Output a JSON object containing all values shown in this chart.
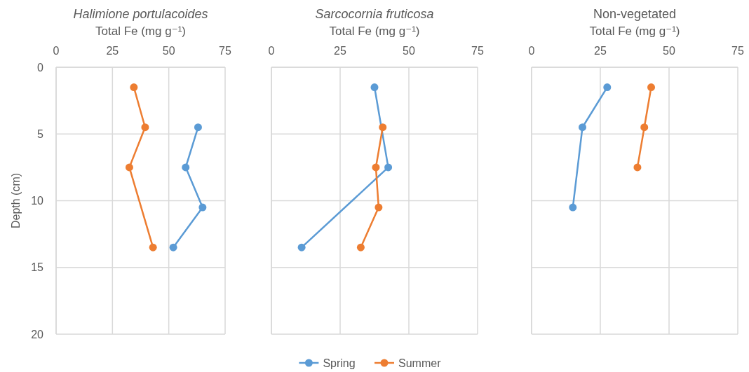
{
  "chart_data": [
    {
      "type": "line",
      "title": "Halimione portulacoides",
      "xlabel": "Total Fe (mg g⁻¹)",
      "ylabel": "Depth (cm)",
      "xlim": [
        0,
        75
      ],
      "xticks": [
        0,
        25,
        50,
        75
      ],
      "ylim": [
        20,
        0
      ],
      "yticks": [
        0,
        5,
        10,
        15,
        20
      ],
      "grid": true,
      "marker": "circle",
      "series": [
        {
          "color": "#5b9bd5",
          "x": [
            63,
            57.5,
            65,
            52
          ],
          "values": [
            4.5,
            7.5,
            10.5,
            13.5
          ]
        },
        {
          "color": "#ed7d31",
          "x": [
            34.5,
            39.5,
            32.5,
            43
          ],
          "values": [
            1.5,
            4.5,
            7.5,
            13.5
          ]
        }
      ]
    },
    {
      "type": "line",
      "title": "Sarcocornia fruticosa",
      "xlabel": "Total Fe (mg g⁻¹)",
      "xlim": [
        0,
        75
      ],
      "xticks": [
        0,
        25,
        50,
        75
      ],
      "ylim": [
        20,
        0
      ],
      "yticks": [
        0,
        5,
        10,
        15,
        20
      ],
      "tick_labels": "x",
      "grid": true,
      "marker": "circle",
      "legend": "bottom",
      "series": [
        {
          "name": "Spring",
          "color": "#5b9bd5",
          "x": [
            37.5,
            42.5,
            11
          ],
          "values": [
            1.5,
            7.5,
            13.5
          ]
        },
        {
          "name": "Summer",
          "color": "#ed7d31",
          "x": [
            40.5,
            38,
            39,
            32.5
          ],
          "values": [
            4.5,
            7.5,
            10.5,
            13.5
          ]
        }
      ]
    },
    {
      "type": "line",
      "title": "Non-vegetated",
      "xlabel": "Total Fe (mg g⁻¹)",
      "xlim": [
        0,
        75
      ],
      "xticks": [
        0,
        25,
        50,
        75
      ],
      "ylim": [
        20,
        0
      ],
      "yticks": [
        0,
        5,
        10,
        15,
        20
      ],
      "tick_labels": "x",
      "grid": true,
      "marker": "circle",
      "series": [
        {
          "color": "#5b9bd5",
          "x": [
            27.5,
            18.5,
            15
          ],
          "values": [
            1.5,
            4.5,
            10.5
          ]
        },
        {
          "color": "#ed7d31",
          "x": [
            43.5,
            41,
            38.5
          ],
          "values": [
            1.5,
            4.5,
            7.5
          ]
        }
      ]
    }
  ]
}
